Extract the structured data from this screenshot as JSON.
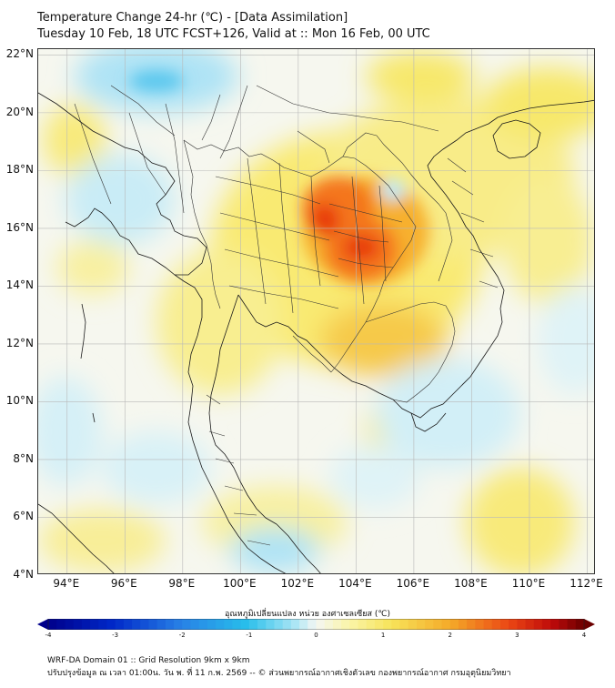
{
  "header": {
    "title": "Temperature Change 24-hr (℃) - [Data Assimilation]",
    "subtitle": "Tuesday 10 Feb, 18 UTC FCST+126, Valid at :: Mon 16 Feb, 00 UTC"
  },
  "map": {
    "lat_labels": [
      "22°N",
      "20°N",
      "18°N",
      "16°N",
      "14°N",
      "12°N",
      "10°N",
      "8°N",
      "6°N",
      "4°N"
    ],
    "lon_labels": [
      "94°E",
      "96°E",
      "98°E",
      "100°E",
      "102°E",
      "104°E",
      "106°E",
      "108°E",
      "110°E",
      "112°E"
    ],
    "lat_range": [
      4,
      22.2
    ],
    "lon_range": [
      93,
      112.3
    ]
  },
  "colorbar": {
    "title": "อุณหภูมิเปลี่ยนแปลง หน่วย องศาเซลเซียส (℃)",
    "ticks": [
      "-4",
      "-3",
      "-2",
      "-1",
      "0",
      "1",
      "2",
      "3",
      "4"
    ],
    "range": [
      -4,
      4
    ],
    "colors": {
      "cold": "#00008b",
      "cool": "#29b6ea",
      "neutral": "#f4f6f2",
      "warm": "#f7e35a",
      "hot": "#f46a17",
      "max": "#6b0000"
    }
  },
  "footer": {
    "line1": "WRF-DA Domain 01 :: Grid Resolution 9km x 9km",
    "line2": "ปรับปรุงข้อมูล ณ เวลา 01:00น. วัน พ. ที่ 11 ก.พ. 2569 -- © ส่วนพยากรณ์อากาศเชิงตัวเลข กองพยากรณ์อากาศ กรมอุตุนิยมวิทยา"
  }
}
